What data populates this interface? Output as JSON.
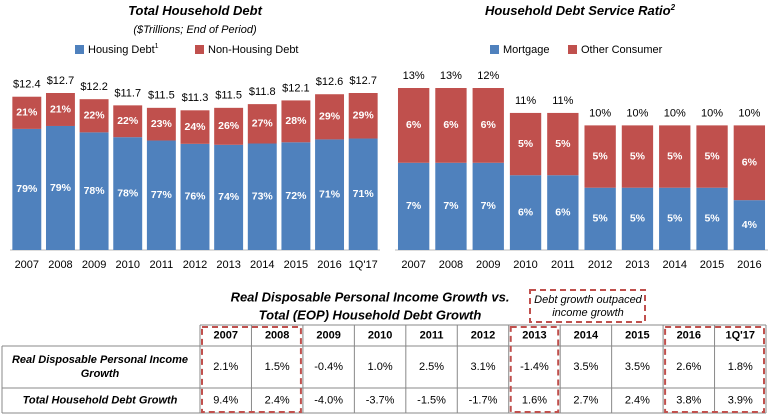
{
  "chart_data": [
    {
      "type": "stacked-bar-share",
      "title": "Total Household Debt",
      "subtitle": "($Trillions; End of Period)",
      "categories": [
        "2007",
        "2008",
        "2009",
        "2010",
        "2011",
        "2012",
        "2013",
        "2014",
        "2015",
        "2016",
        "1Q'17"
      ],
      "totals": {
        "values": [
          12.4,
          12.7,
          12.2,
          11.7,
          11.5,
          11.3,
          11.5,
          11.8,
          12.1,
          12.6,
          12.7
        ],
        "value_labels": [
          "$12.4",
          "$12.7",
          "$12.2",
          "$11.7",
          "$11.5",
          "$11.3",
          "$11.5",
          "$11.8",
          "$12.1",
          "$12.6",
          "$12.7"
        ]
      },
      "series": [
        {
          "name": "Housing Debt",
          "superscript": "1",
          "color": "#4f81bd",
          "values": [
            79,
            79,
            78,
            78,
            77,
            76,
            74,
            73,
            72,
            71,
            71
          ],
          "value_labels": [
            "79%",
            "79%",
            "78%",
            "78%",
            "77%",
            "76%",
            "74%",
            "73%",
            "72%",
            "71%",
            "71%"
          ]
        },
        {
          "name": "Non-Housing Debt",
          "color": "#c0504d",
          "values": [
            21,
            21,
            22,
            22,
            23,
            24,
            26,
            27,
            28,
            29,
            29
          ],
          "value_labels": [
            "21%",
            "21%",
            "22%",
            "22%",
            "23%",
            "24%",
            "26%",
            "27%",
            "28%",
            "29%",
            "29%"
          ]
        }
      ]
    },
    {
      "type": "stacked-bar",
      "title": "Household Debt Service Ratio",
      "title_superscript": "2",
      "categories": [
        "2007",
        "2008",
        "2009",
        "2010",
        "2011",
        "2012",
        "2013",
        "2014",
        "2015",
        "2016"
      ],
      "totals": {
        "values": [
          13,
          13,
          12,
          11,
          11,
          10,
          10,
          10,
          10,
          10
        ],
        "value_labels": [
          "13%",
          "13%",
          "12%",
          "11%",
          "11%",
          "10%",
          "10%",
          "10%",
          "10%",
          "10%"
        ]
      },
      "series": [
        {
          "name": "Mortgage",
          "color": "#4f81bd",
          "values": [
            7,
            7,
            7,
            6,
            6,
            5,
            5,
            5,
            5,
            4
          ],
          "value_labels": [
            "7%",
            "7%",
            "7%",
            "6%",
            "6%",
            "5%",
            "5%",
            "5%",
            "5%",
            "4%"
          ]
        },
        {
          "name": "Other Consumer",
          "color": "#c0504d",
          "values": [
            6,
            6,
            6,
            5,
            5,
            5,
            5,
            5,
            5,
            6
          ],
          "value_labels": [
            "6%",
            "6%",
            "6%",
            "5%",
            "5%",
            "5%",
            "5%",
            "5%",
            "5%",
            "6%"
          ]
        }
      ]
    }
  ],
  "table": {
    "title": [
      "Real Disposable Personal Income Growth vs.",
      "Total (EOP) Household Debt Growth"
    ],
    "callout": [
      "Debt growth outpaced",
      "income growth"
    ],
    "header": [
      "2007",
      "2008",
      "2009",
      "2010",
      "2011",
      "2012",
      "2013",
      "2014",
      "2015",
      "2016",
      "1Q'17"
    ],
    "rows": [
      {
        "label": [
          "Real Disposable  Personal Income",
          "Growth"
        ],
        "cells": [
          "2.1%",
          "1.5%",
          "-0.4%",
          "1.0%",
          "2.5%",
          "3.1%",
          "-1.4%",
          "3.5%",
          "3.5%",
          "2.6%",
          "1.8%"
        ]
      },
      {
        "label": [
          "Total Household  Debt Growth"
        ],
        "cells": [
          "9.4%",
          "2.4%",
          "-4.0%",
          "-3.7%",
          "-1.5%",
          "-1.7%",
          "1.6%",
          "2.7%",
          "2.4%",
          "3.8%",
          "3.9%"
        ]
      }
    ]
  }
}
